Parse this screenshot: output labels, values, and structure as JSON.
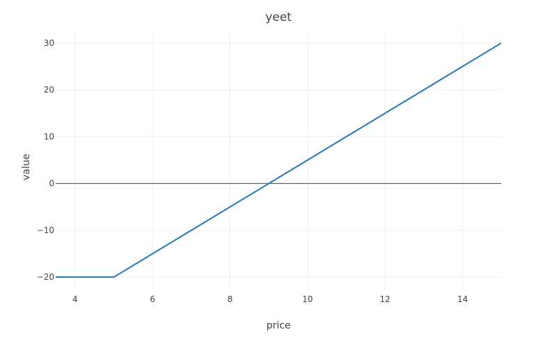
{
  "chart_data": {
    "type": "line",
    "title": "yeet",
    "xlabel": "price",
    "ylabel": "value",
    "xlim": [
      3.5,
      15
    ],
    "ylim": [
      -22.5,
      32.5
    ],
    "xticks": [
      4,
      6,
      8,
      10,
      12,
      14
    ],
    "yticks": [
      -20,
      -10,
      0,
      10,
      20,
      30
    ],
    "xtick_labels": [
      "4",
      "6",
      "8",
      "10",
      "12",
      "14"
    ],
    "ytick_labels": [
      "−20",
      "−10",
      "0",
      "10",
      "20",
      "30"
    ],
    "grid": true,
    "zeroline": true,
    "series": [
      {
        "x": [
          3.5,
          5,
          15
        ],
        "y": [
          -20,
          -20,
          30
        ],
        "color": "#1f77b4"
      }
    ]
  }
}
